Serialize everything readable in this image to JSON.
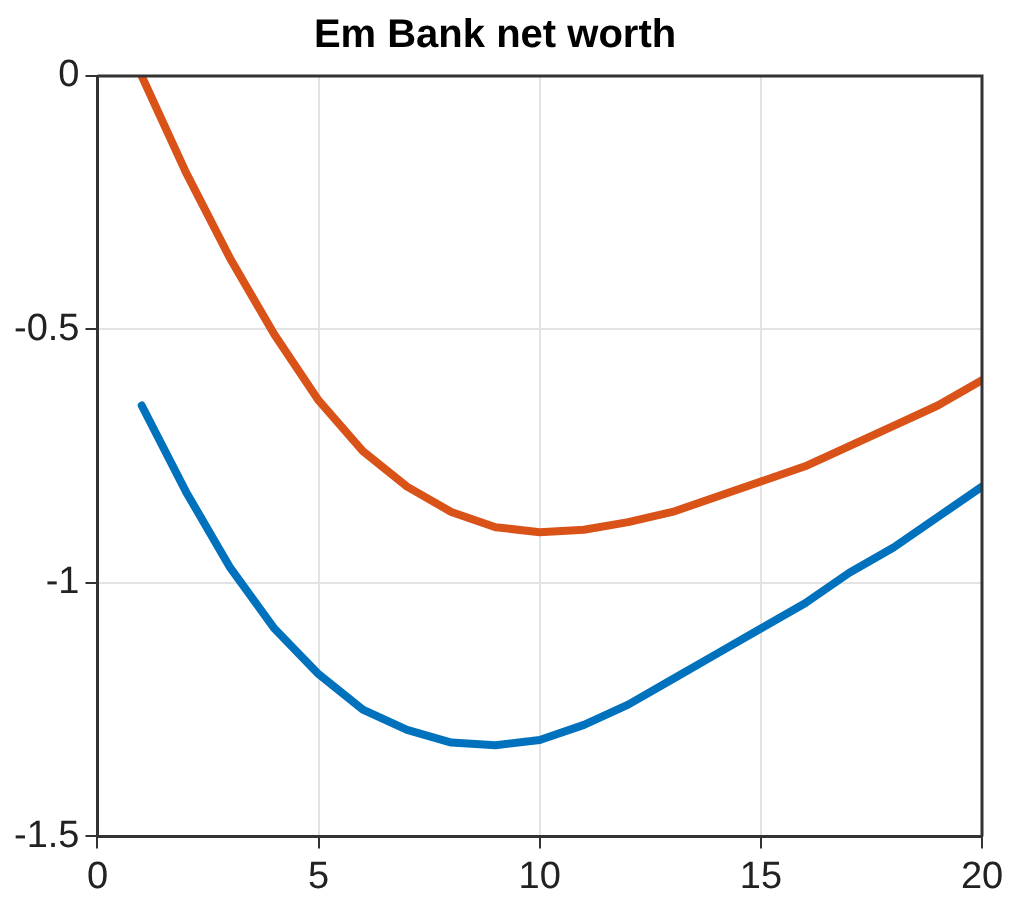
{
  "chart_data": {
    "type": "line",
    "title": "Em Bank net worth",
    "x": [
      1,
      2,
      3,
      4,
      5,
      6,
      7,
      8,
      9,
      10,
      11,
      12,
      13,
      14,
      15,
      16,
      17,
      18,
      19,
      20
    ],
    "series": [
      {
        "color": "#d95319",
        "values": [
          0,
          -0.19,
          -0.36,
          -0.51,
          -0.64,
          -0.74,
          -0.81,
          -0.86,
          -0.89,
          -0.9,
          -0.895,
          -0.88,
          -0.86,
          -0.83,
          -0.8,
          -0.77,
          -0.73,
          -0.69,
          -0.65,
          -0.6
        ]
      },
      {
        "color": "#0072bd",
        "values": [
          -0.65,
          -0.82,
          -0.97,
          -1.09,
          -1.18,
          -1.25,
          -1.29,
          -1.315,
          -1.32,
          -1.31,
          -1.28,
          -1.24,
          -1.19,
          -1.14,
          -1.09,
          -1.04,
          -0.98,
          -0.93,
          -0.87,
          -0.81
        ]
      }
    ],
    "xlim": [
      0,
      20
    ],
    "xticks": [
      0,
      5,
      10,
      15,
      20
    ],
    "ylim": [
      -1.5,
      0
    ],
    "yticks": [
      -1.5,
      -1,
      -0.5,
      0
    ],
    "grid": true,
    "legend": false,
    "marker": "none",
    "line_style": "solid"
  }
}
